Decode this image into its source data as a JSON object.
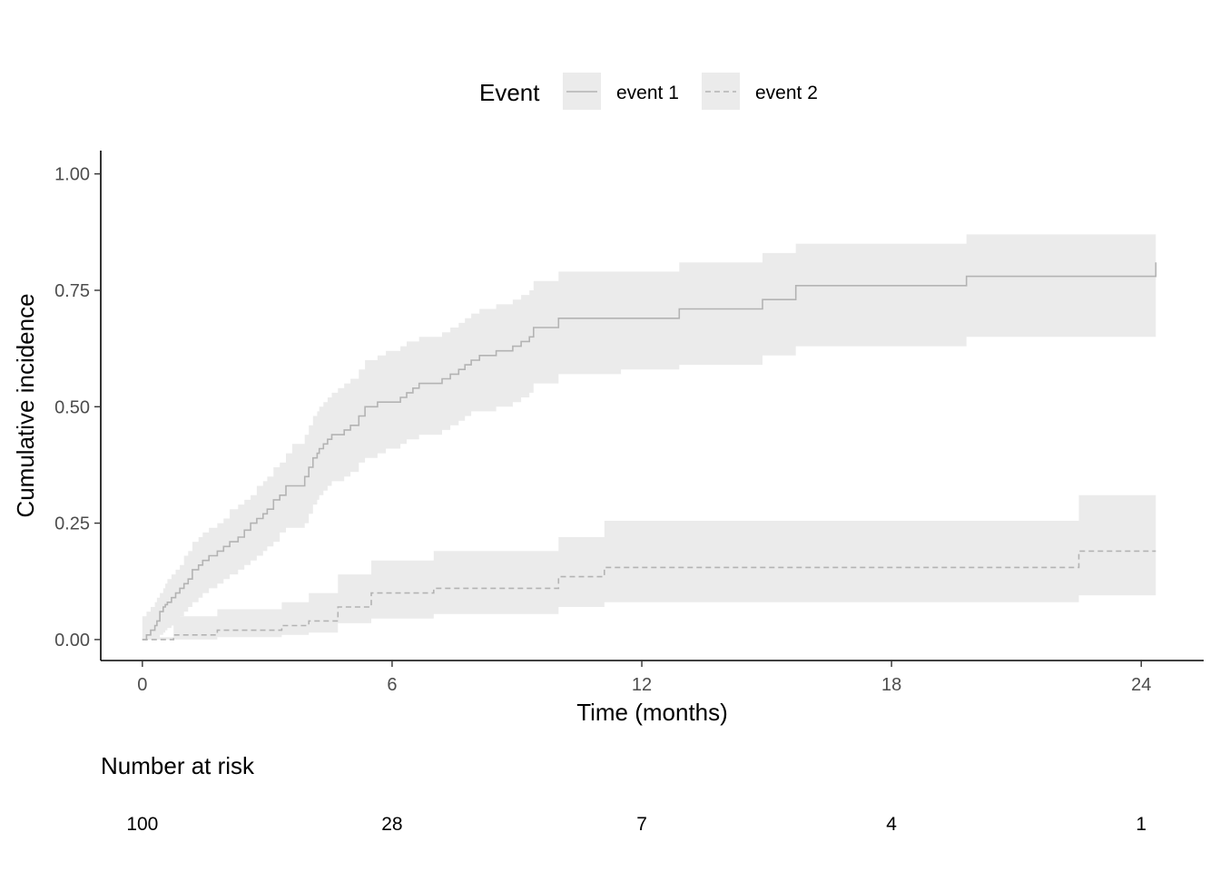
{
  "chart_data": {
    "type": "line",
    "subtype": "step",
    "xlabel": "Time (months)",
    "ylabel": "Cumulative incidence",
    "xlim": [
      -1,
      25.5
    ],
    "ylim": [
      -0.045,
      1.05
    ],
    "xticks": [
      0,
      6,
      12,
      18,
      24
    ],
    "yticks": [
      0.0,
      0.25,
      0.5,
      0.75,
      1.0
    ],
    "xtick_labels": [
      "0",
      "6",
      "12",
      "18",
      "24"
    ],
    "ytick_labels": [
      "0.00",
      "0.25",
      "0.50",
      "0.75",
      "1.00"
    ],
    "grid": false,
    "legend": {
      "title": "Event",
      "position": "top",
      "entries": [
        "event 1",
        "event 2"
      ]
    },
    "colors": {
      "line": "#b3b3b3",
      "band": "#ebebeb",
      "axis": "#000000",
      "tick_text": "#4d4d4d"
    },
    "series": [
      {
        "name": "event 1",
        "style": "solid",
        "x": [
          0,
          0.1,
          0.2,
          0.3,
          0.35,
          0.42,
          0.5,
          0.55,
          0.6,
          0.7,
          0.8,
          0.9,
          1.0,
          1.1,
          1.2,
          1.35,
          1.45,
          1.6,
          1.8,
          1.95,
          2.1,
          2.3,
          2.45,
          2.6,
          2.75,
          2.9,
          3.0,
          3.15,
          3.3,
          3.45,
          3.6,
          3.75,
          3.9,
          4.0,
          4.1,
          4.2,
          4.25,
          4.35,
          4.45,
          4.55,
          4.7,
          4.85,
          5.0,
          5.2,
          5.35,
          5.5,
          5.65,
          5.85,
          6.0,
          6.2,
          6.35,
          6.5,
          6.65,
          6.8,
          7.0,
          7.2,
          7.4,
          7.6,
          7.75,
          7.9,
          8.1,
          8.3,
          8.5,
          8.7,
          8.9,
          9.1,
          9.3,
          9.4,
          9.6,
          9.8,
          10.0,
          10.5,
          11.0,
          11.5,
          12.0,
          12.5,
          12.9,
          13.5,
          14.0,
          14.5,
          14.9,
          15.7,
          16.5,
          17.0,
          18.0,
          19.0,
          19.8,
          20.3,
          21.0,
          22.0,
          23.0,
          24.0,
          24.35,
          24.35
        ],
        "y": [
          0,
          0.01,
          0.02,
          0.03,
          0.04,
          0.06,
          0.07,
          0.075,
          0.08,
          0.09,
          0.1,
          0.11,
          0.12,
          0.13,
          0.15,
          0.16,
          0.17,
          0.18,
          0.19,
          0.2,
          0.21,
          0.22,
          0.235,
          0.25,
          0.26,
          0.27,
          0.28,
          0.3,
          0.31,
          0.33,
          0.33,
          0.33,
          0.35,
          0.37,
          0.39,
          0.4,
          0.41,
          0.42,
          0.43,
          0.44,
          0.44,
          0.45,
          0.46,
          0.48,
          0.5,
          0.5,
          0.51,
          0.51,
          0.51,
          0.52,
          0.53,
          0.54,
          0.55,
          0.55,
          0.55,
          0.56,
          0.57,
          0.58,
          0.59,
          0.6,
          0.61,
          0.61,
          0.62,
          0.62,
          0.63,
          0.64,
          0.65,
          0.67,
          0.67,
          0.67,
          0.69,
          0.69,
          0.69,
          0.69,
          0.69,
          0.69,
          0.71,
          0.71,
          0.71,
          0.71,
          0.73,
          0.76,
          0.76,
          0.76,
          0.76,
          0.76,
          0.78,
          0.78,
          0.78,
          0.78,
          0.78,
          0.78,
          0.78,
          0.81
        ],
        "lower": [
          0,
          0,
          0,
          0,
          0,
          0.01,
          0.015,
          0.02,
          0.025,
          0.03,
          0.04,
          0.05,
          0.06,
          0.07,
          0.08,
          0.09,
          0.1,
          0.11,
          0.12,
          0.13,
          0.14,
          0.15,
          0.16,
          0.17,
          0.18,
          0.19,
          0.2,
          0.21,
          0.23,
          0.24,
          0.24,
          0.24,
          0.25,
          0.27,
          0.29,
          0.3,
          0.31,
          0.32,
          0.33,
          0.34,
          0.34,
          0.35,
          0.36,
          0.38,
          0.39,
          0.39,
          0.4,
          0.41,
          0.41,
          0.42,
          0.43,
          0.43,
          0.44,
          0.44,
          0.44,
          0.45,
          0.46,
          0.47,
          0.48,
          0.49,
          0.49,
          0.49,
          0.5,
          0.5,
          0.51,
          0.52,
          0.53,
          0.55,
          0.55,
          0.55,
          0.57,
          0.57,
          0.57,
          0.58,
          0.58,
          0.58,
          0.59,
          0.59,
          0.59,
          0.59,
          0.61,
          0.63,
          0.63,
          0.63,
          0.63,
          0.63,
          0.65,
          0.65,
          0.65,
          0.65,
          0.65,
          0.65,
          0.65,
          0.65
        ],
        "upper": [
          0.05,
          0.06,
          0.07,
          0.08,
          0.09,
          0.1,
          0.11,
          0.12,
          0.13,
          0.14,
          0.15,
          0.16,
          0.18,
          0.19,
          0.21,
          0.22,
          0.23,
          0.24,
          0.25,
          0.26,
          0.28,
          0.29,
          0.3,
          0.31,
          0.33,
          0.34,
          0.35,
          0.37,
          0.38,
          0.4,
          0.42,
          0.42,
          0.44,
          0.46,
          0.48,
          0.49,
          0.5,
          0.51,
          0.52,
          0.53,
          0.54,
          0.55,
          0.56,
          0.58,
          0.6,
          0.6,
          0.61,
          0.62,
          0.62,
          0.63,
          0.64,
          0.64,
          0.65,
          0.65,
          0.65,
          0.66,
          0.67,
          0.68,
          0.69,
          0.7,
          0.71,
          0.71,
          0.72,
          0.72,
          0.73,
          0.74,
          0.75,
          0.77,
          0.77,
          0.77,
          0.79,
          0.79,
          0.79,
          0.79,
          0.79,
          0.79,
          0.81,
          0.81,
          0.81,
          0.81,
          0.83,
          0.85,
          0.85,
          0.85,
          0.85,
          0.85,
          0.87,
          0.87,
          0.87,
          0.87,
          0.87,
          0.87,
          0.87,
          0.87
        ]
      },
      {
        "name": "event 2",
        "style": "dashed",
        "x": [
          0,
          0.75,
          1.8,
          2.9,
          3.35,
          4.0,
          4.7,
          5.5,
          6.2,
          7.0,
          7.8,
          8.9,
          10.0,
          11.1,
          12.5,
          15.0,
          18.0,
          21.0,
          22.5,
          23.5,
          24.35
        ],
        "y": [
          0,
          0.01,
          0.02,
          0.02,
          0.03,
          0.04,
          0.07,
          0.1,
          0.1,
          0.11,
          0.11,
          0.11,
          0.135,
          0.155,
          0.155,
          0.155,
          0.155,
          0.155,
          0.19,
          0.19,
          0.19
        ],
        "lower": [
          0,
          0,
          0.005,
          0.005,
          0.01,
          0.015,
          0.035,
          0.045,
          0.045,
          0.055,
          0.055,
          0.055,
          0.07,
          0.08,
          0.08,
          0.08,
          0.08,
          0.08,
          0.095,
          0.095,
          0.095
        ],
        "upper": [
          0.005,
          0.05,
          0.065,
          0.065,
          0.08,
          0.1,
          0.14,
          0.17,
          0.17,
          0.19,
          0.19,
          0.19,
          0.22,
          0.255,
          0.255,
          0.255,
          0.255,
          0.255,
          0.31,
          0.31,
          0.31
        ]
      }
    ],
    "risk_table": {
      "title": "Number at risk",
      "times": [
        0,
        6,
        12,
        18,
        24
      ],
      "values": [
        "100",
        "28",
        "7",
        "4",
        "1"
      ]
    }
  }
}
